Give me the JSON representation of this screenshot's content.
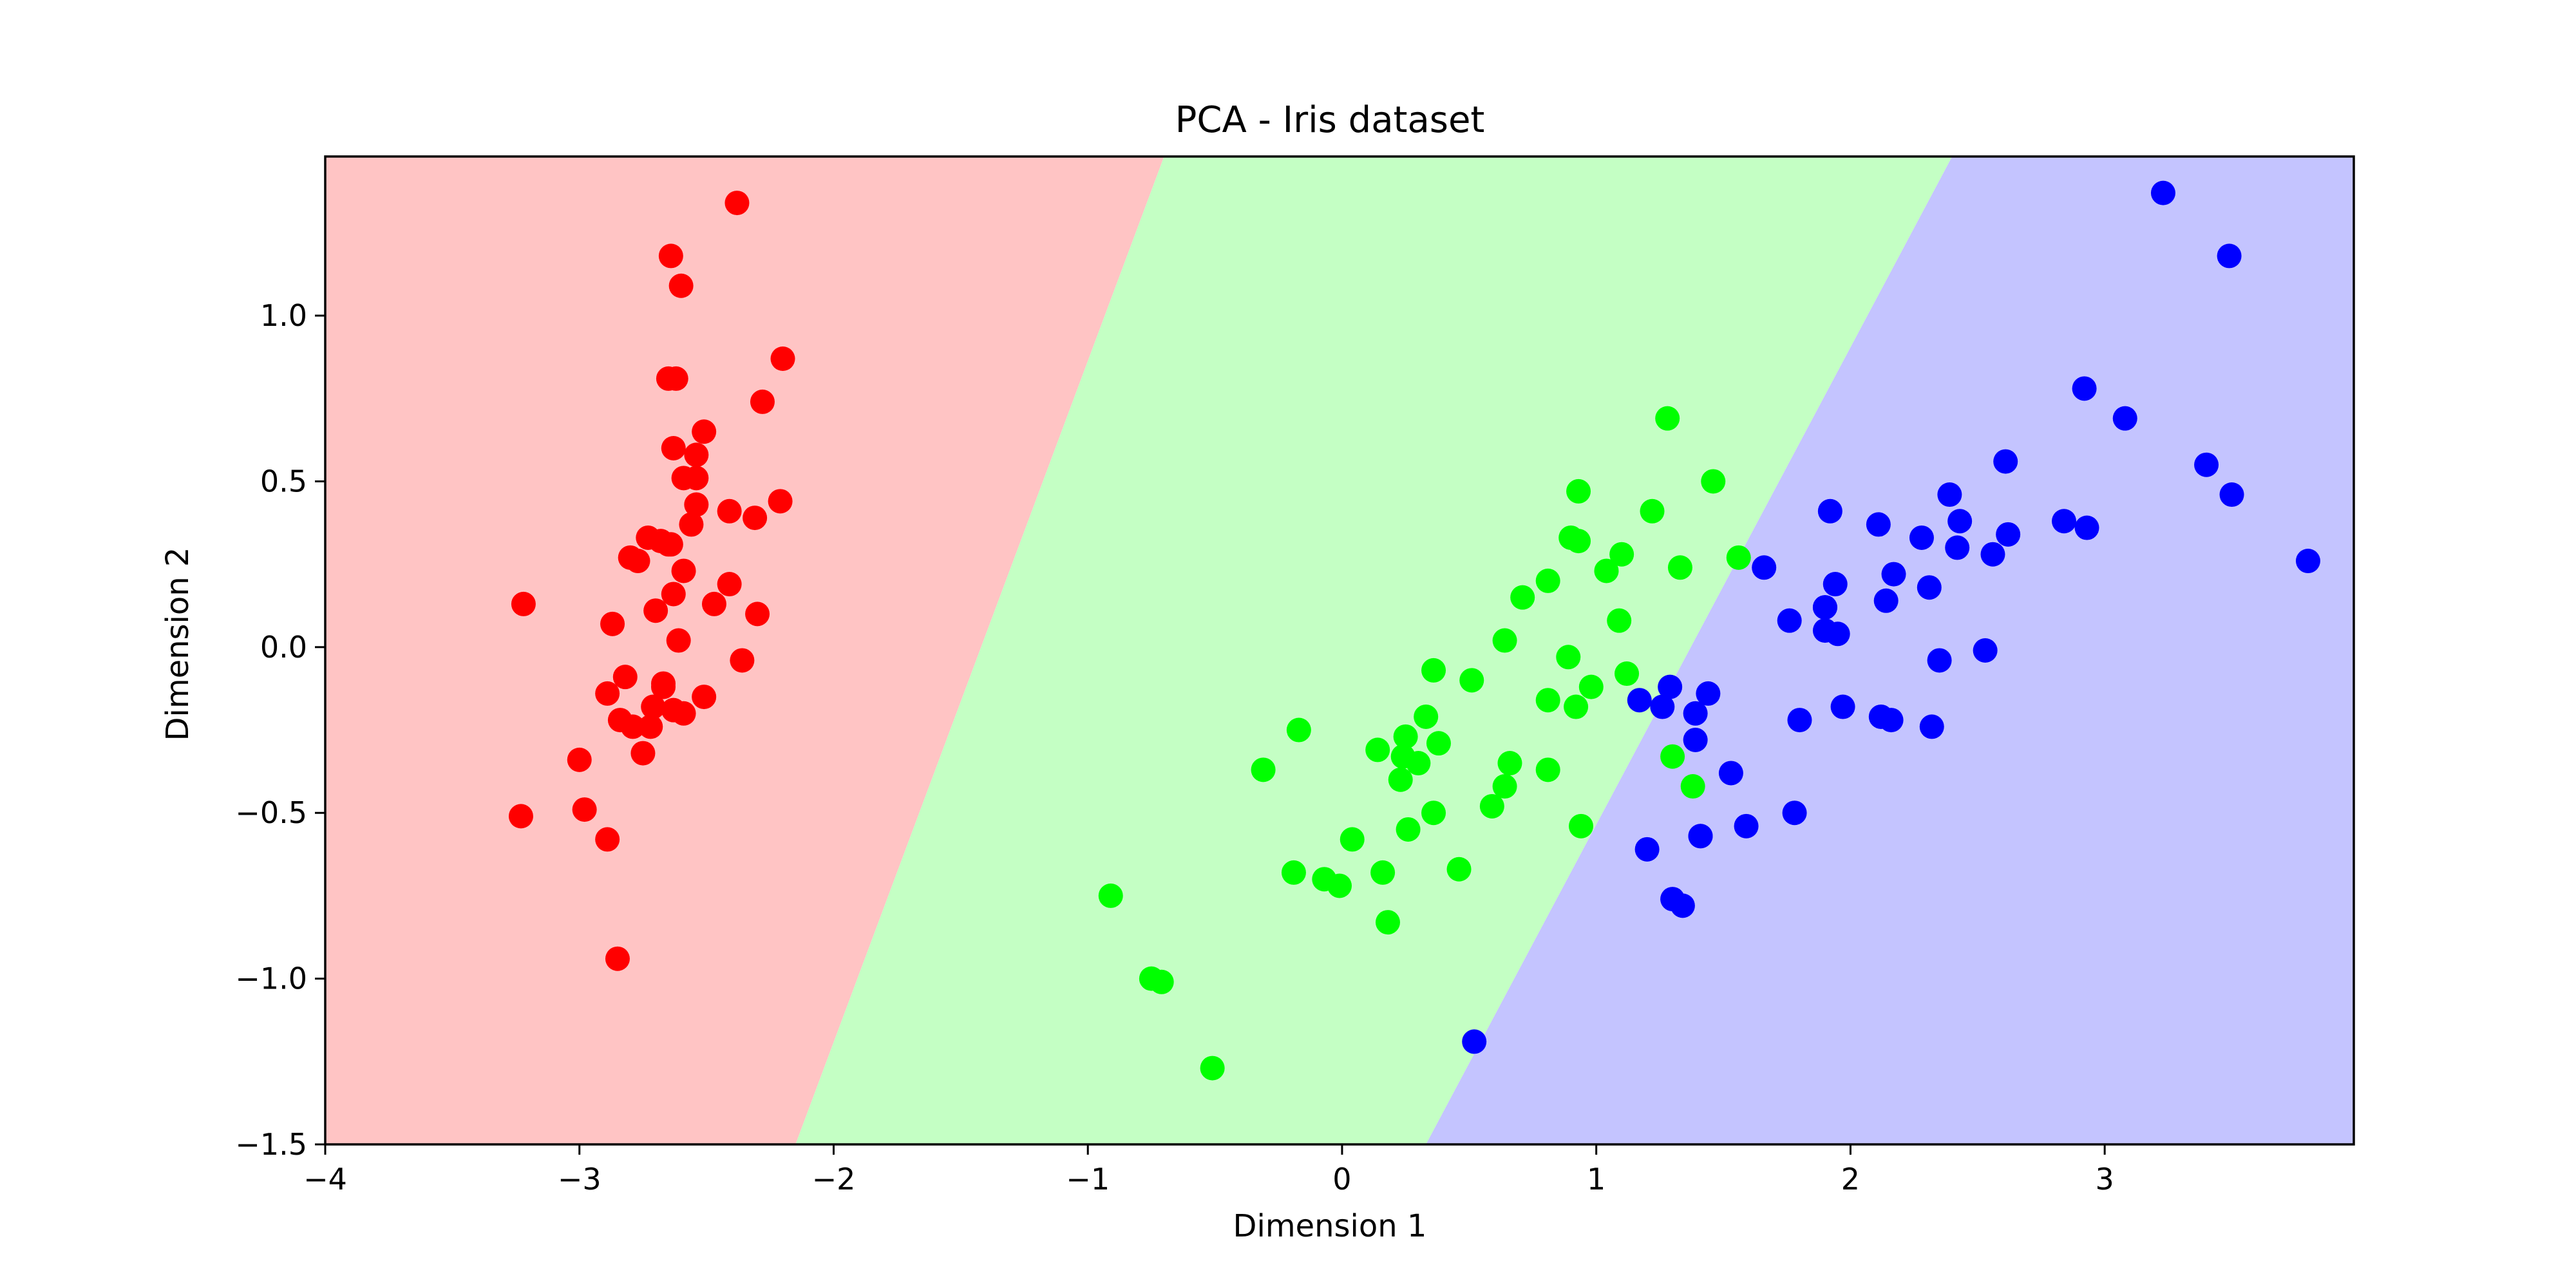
{
  "chart_data": {
    "type": "scatter",
    "title": "PCA - Iris dataset",
    "xlabel": "Dimension 1",
    "ylabel": "Dimension 2",
    "xlim": [
      -4.0,
      3.98
    ],
    "ylim": [
      -1.5,
      1.48
    ],
    "xticks": [
      -4,
      -3,
      -2,
      -1,
      0,
      1,
      2,
      3
    ],
    "xtick_labels": [
      "−4",
      "−3",
      "−2",
      "−1",
      "0",
      "1",
      "2",
      "3"
    ],
    "yticks": [
      -1.5,
      -1.0,
      -0.5,
      0.0,
      0.5,
      1.0
    ],
    "ytick_labels": [
      "−1.5",
      "−1.0",
      "−0.5",
      "0.0",
      "0.5",
      "1.0"
    ],
    "grid": false,
    "legend": "none",
    "regions": [
      {
        "color": "#ffc4c4",
        "polygon": [
          [
            -4.0,
            1.48
          ],
          [
            -0.7,
            1.48
          ],
          [
            -2.15,
            -1.5
          ],
          [
            -4.0,
            -1.5
          ]
        ]
      },
      {
        "color": "#c4ffc4",
        "polygon": [
          [
            -0.7,
            1.48
          ],
          [
            2.4,
            1.48
          ],
          [
            0.33,
            -1.5
          ],
          [
            -2.15,
            -1.5
          ]
        ]
      },
      {
        "color": "#c4c4ff",
        "polygon": [
          [
            2.4,
            1.48
          ],
          [
            3.98,
            1.48
          ],
          [
            3.98,
            -1.5
          ],
          [
            0.33,
            -1.5
          ]
        ]
      }
    ],
    "series": [
      {
        "color": "#ff0000",
        "points": [
          [
            -2.68,
            0.32
          ],
          [
            -2.71,
            -0.18
          ],
          [
            -2.89,
            -0.14
          ],
          [
            -2.75,
            -0.32
          ],
          [
            -2.73,
            0.33
          ],
          [
            -2.28,
            0.74
          ],
          [
            -2.82,
            -0.09
          ],
          [
            -2.63,
            0.16
          ],
          [
            -2.89,
            -0.58
          ],
          [
            -2.67,
            -0.11
          ],
          [
            -2.51,
            0.65
          ],
          [
            -2.61,
            0.02
          ],
          [
            -2.79,
            -0.24
          ],
          [
            -3.23,
            -0.51
          ],
          [
            -2.64,
            1.18
          ],
          [
            -2.38,
            1.34
          ],
          [
            -2.62,
            0.81
          ],
          [
            -2.65,
            0.31
          ],
          [
            -2.2,
            0.87
          ],
          [
            -2.59,
            0.51
          ],
          [
            -2.31,
            0.39
          ],
          [
            -2.54,
            0.43
          ],
          [
            -3.22,
            0.13
          ],
          [
            -2.3,
            0.1
          ],
          [
            -2.36,
            -0.04
          ],
          [
            -2.51,
            -0.15
          ],
          [
            -2.47,
            0.13
          ],
          [
            -2.56,
            0.37
          ],
          [
            -2.64,
            0.31
          ],
          [
            -2.63,
            -0.19
          ],
          [
            -2.59,
            -0.2
          ],
          [
            -2.41,
            0.41
          ],
          [
            -2.65,
            0.81
          ],
          [
            -2.6,
            1.09
          ],
          [
            -2.67,
            -0.12
          ],
          [
            -2.87,
            0.07
          ],
          [
            -2.63,
            0.6
          ],
          [
            -2.8,
            0.27
          ],
          [
            -2.98,
            -0.49
          ],
          [
            -2.59,
            0.23
          ],
          [
            -2.77,
            0.26
          ],
          [
            -2.85,
            -0.94
          ],
          [
            -3.0,
            -0.34
          ],
          [
            -2.41,
            0.19
          ],
          [
            -2.21,
            0.44
          ],
          [
            -2.72,
            -0.24
          ],
          [
            -2.54,
            0.51
          ],
          [
            -2.84,
            -0.22
          ],
          [
            -2.54,
            0.58
          ],
          [
            -2.7,
            0.11
          ]
        ]
      },
      {
        "color": "#00ff00",
        "points": [
          [
            1.28,
            0.69
          ],
          [
            0.93,
            0.32
          ],
          [
            1.46,
            0.5
          ],
          [
            0.18,
            -0.83
          ],
          [
            1.09,
            0.08
          ],
          [
            0.64,
            -0.42
          ],
          [
            1.1,
            0.28
          ],
          [
            -0.75,
            -1.0
          ],
          [
            1.04,
            0.23
          ],
          [
            -0.01,
            -0.72
          ],
          [
            -0.51,
            -1.27
          ],
          [
            0.51,
            -0.1
          ],
          [
            0.26,
            -0.55
          ],
          [
            0.98,
            -0.12
          ],
          [
            -0.17,
            -0.25
          ],
          [
            0.93,
            0.47
          ],
          [
            0.66,
            -0.35
          ],
          [
            0.24,
            -0.33
          ],
          [
            0.94,
            -0.54
          ],
          [
            0.04,
            -0.58
          ],
          [
            1.12,
            -0.08
          ],
          [
            0.36,
            -0.07
          ],
          [
            1.3,
            -0.33
          ],
          [
            0.92,
            -0.18
          ],
          [
            0.71,
            0.15
          ],
          [
            0.9,
            0.33
          ],
          [
            1.33,
            0.24
          ],
          [
            1.56,
            0.27
          ],
          [
            0.81,
            -0.16
          ],
          [
            -0.31,
            -0.37
          ],
          [
            -0.07,
            -0.7
          ],
          [
            -0.19,
            -0.68
          ],
          [
            0.14,
            -0.31
          ],
          [
            1.38,
            -0.42
          ],
          [
            0.59,
            -0.48
          ],
          [
            0.81,
            0.2
          ],
          [
            1.22,
            0.41
          ],
          [
            0.81,
            -0.37
          ],
          [
            0.25,
            -0.27
          ],
          [
            0.16,
            -0.68
          ],
          [
            0.46,
            -0.67
          ],
          [
            0.89,
            -0.03
          ],
          [
            0.23,
            -0.4
          ],
          [
            -0.71,
            -1.01
          ],
          [
            0.36,
            -0.5
          ],
          [
            0.33,
            -0.21
          ],
          [
            0.38,
            -0.29
          ],
          [
            0.64,
            0.02
          ],
          [
            -0.91,
            -0.75
          ],
          [
            0.3,
            -0.35
          ]
        ]
      },
      {
        "color": "#0000ff",
        "points": [
          [
            2.53,
            -0.01
          ],
          [
            1.41,
            -0.57
          ],
          [
            2.62,
            0.34
          ],
          [
            1.97,
            -0.18
          ],
          [
            2.35,
            -0.04
          ],
          [
            3.4,
            0.55
          ],
          [
            0.52,
            -1.19
          ],
          [
            2.93,
            0.36
          ],
          [
            2.32,
            -0.24
          ],
          [
            2.92,
            0.78
          ],
          [
            1.66,
            0.24
          ],
          [
            1.8,
            -0.22
          ],
          [
            2.17,
            0.22
          ],
          [
            1.34,
            -0.78
          ],
          [
            1.59,
            -0.54
          ],
          [
            1.9,
            0.12
          ],
          [
            1.95,
            0.04
          ],
          [
            3.49,
            1.18
          ],
          [
            3.8,
            0.26
          ],
          [
            1.3,
            -0.76
          ],
          [
            2.43,
            0.38
          ],
          [
            1.2,
            -0.61
          ],
          [
            3.5,
            0.46
          ],
          [
            1.39,
            -0.2
          ],
          [
            2.28,
            0.33
          ],
          [
            2.61,
            0.56
          ],
          [
            1.26,
            -0.18
          ],
          [
            1.29,
            -0.12
          ],
          [
            2.12,
            -0.21
          ],
          [
            2.39,
            0.46
          ],
          [
            2.84,
            0.38
          ],
          [
            3.23,
            1.37
          ],
          [
            2.16,
            -0.22
          ],
          [
            1.44,
            -0.14
          ],
          [
            1.78,
            -0.5
          ],
          [
            3.08,
            0.69
          ],
          [
            2.14,
            0.14
          ],
          [
            1.9,
            0.05
          ],
          [
            1.17,
            -0.16
          ],
          [
            2.11,
            0.37
          ],
          [
            2.31,
            0.18
          ],
          [
            1.92,
            0.41
          ],
          [
            1.41,
            -0.57
          ],
          [
            2.56,
            0.28
          ],
          [
            2.42,
            0.3
          ],
          [
            1.94,
            0.19
          ],
          [
            1.53,
            -0.38
          ],
          [
            1.76,
            0.08
          ],
          [
            1.9,
            0.12
          ],
          [
            1.39,
            -0.28
          ]
        ]
      }
    ]
  }
}
